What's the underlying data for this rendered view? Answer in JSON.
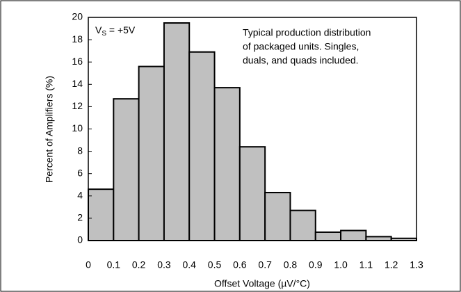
{
  "chart_data": {
    "type": "histogram",
    "x_label": "Offset Voltage (µV/°C)",
    "y_label": "Percent of Amplifiers (%)",
    "annotation_supply": {
      "symbol": "V",
      "subscript": "S",
      "text": " = +5V"
    },
    "annotation_note": [
      "Typical production distribution",
      "of packaged units. Singles,",
      "duals, and quads included."
    ],
    "bins": [
      0,
      0.1,
      0.2,
      0.3,
      0.4,
      0.5,
      0.6,
      0.7,
      0.8,
      0.9,
      1,
      1.1,
      1.2,
      1.3
    ],
    "values": [
      4.6,
      12.7,
      15.6,
      19.5,
      16.9,
      13.7,
      8.4,
      4.3,
      2.7,
      0.75,
      0.9,
      0.35,
      0.2
    ],
    "color": "#c0c0c0",
    "xlim": [
      0,
      1.3
    ],
    "xticks": [
      0,
      0.1,
      0.2,
      0.3,
      0.4,
      0.5,
      0.6,
      0.7,
      0.8,
      0.9,
      {
        "value": 1,
        "label": "1.0"
      },
      1.1,
      1.2,
      1.3
    ],
    "ylim": [
      0,
      20
    ],
    "yticks": [
      0,
      2,
      4,
      6,
      8,
      10,
      12,
      14,
      16,
      18,
      20
    ],
    "grid": false
  }
}
